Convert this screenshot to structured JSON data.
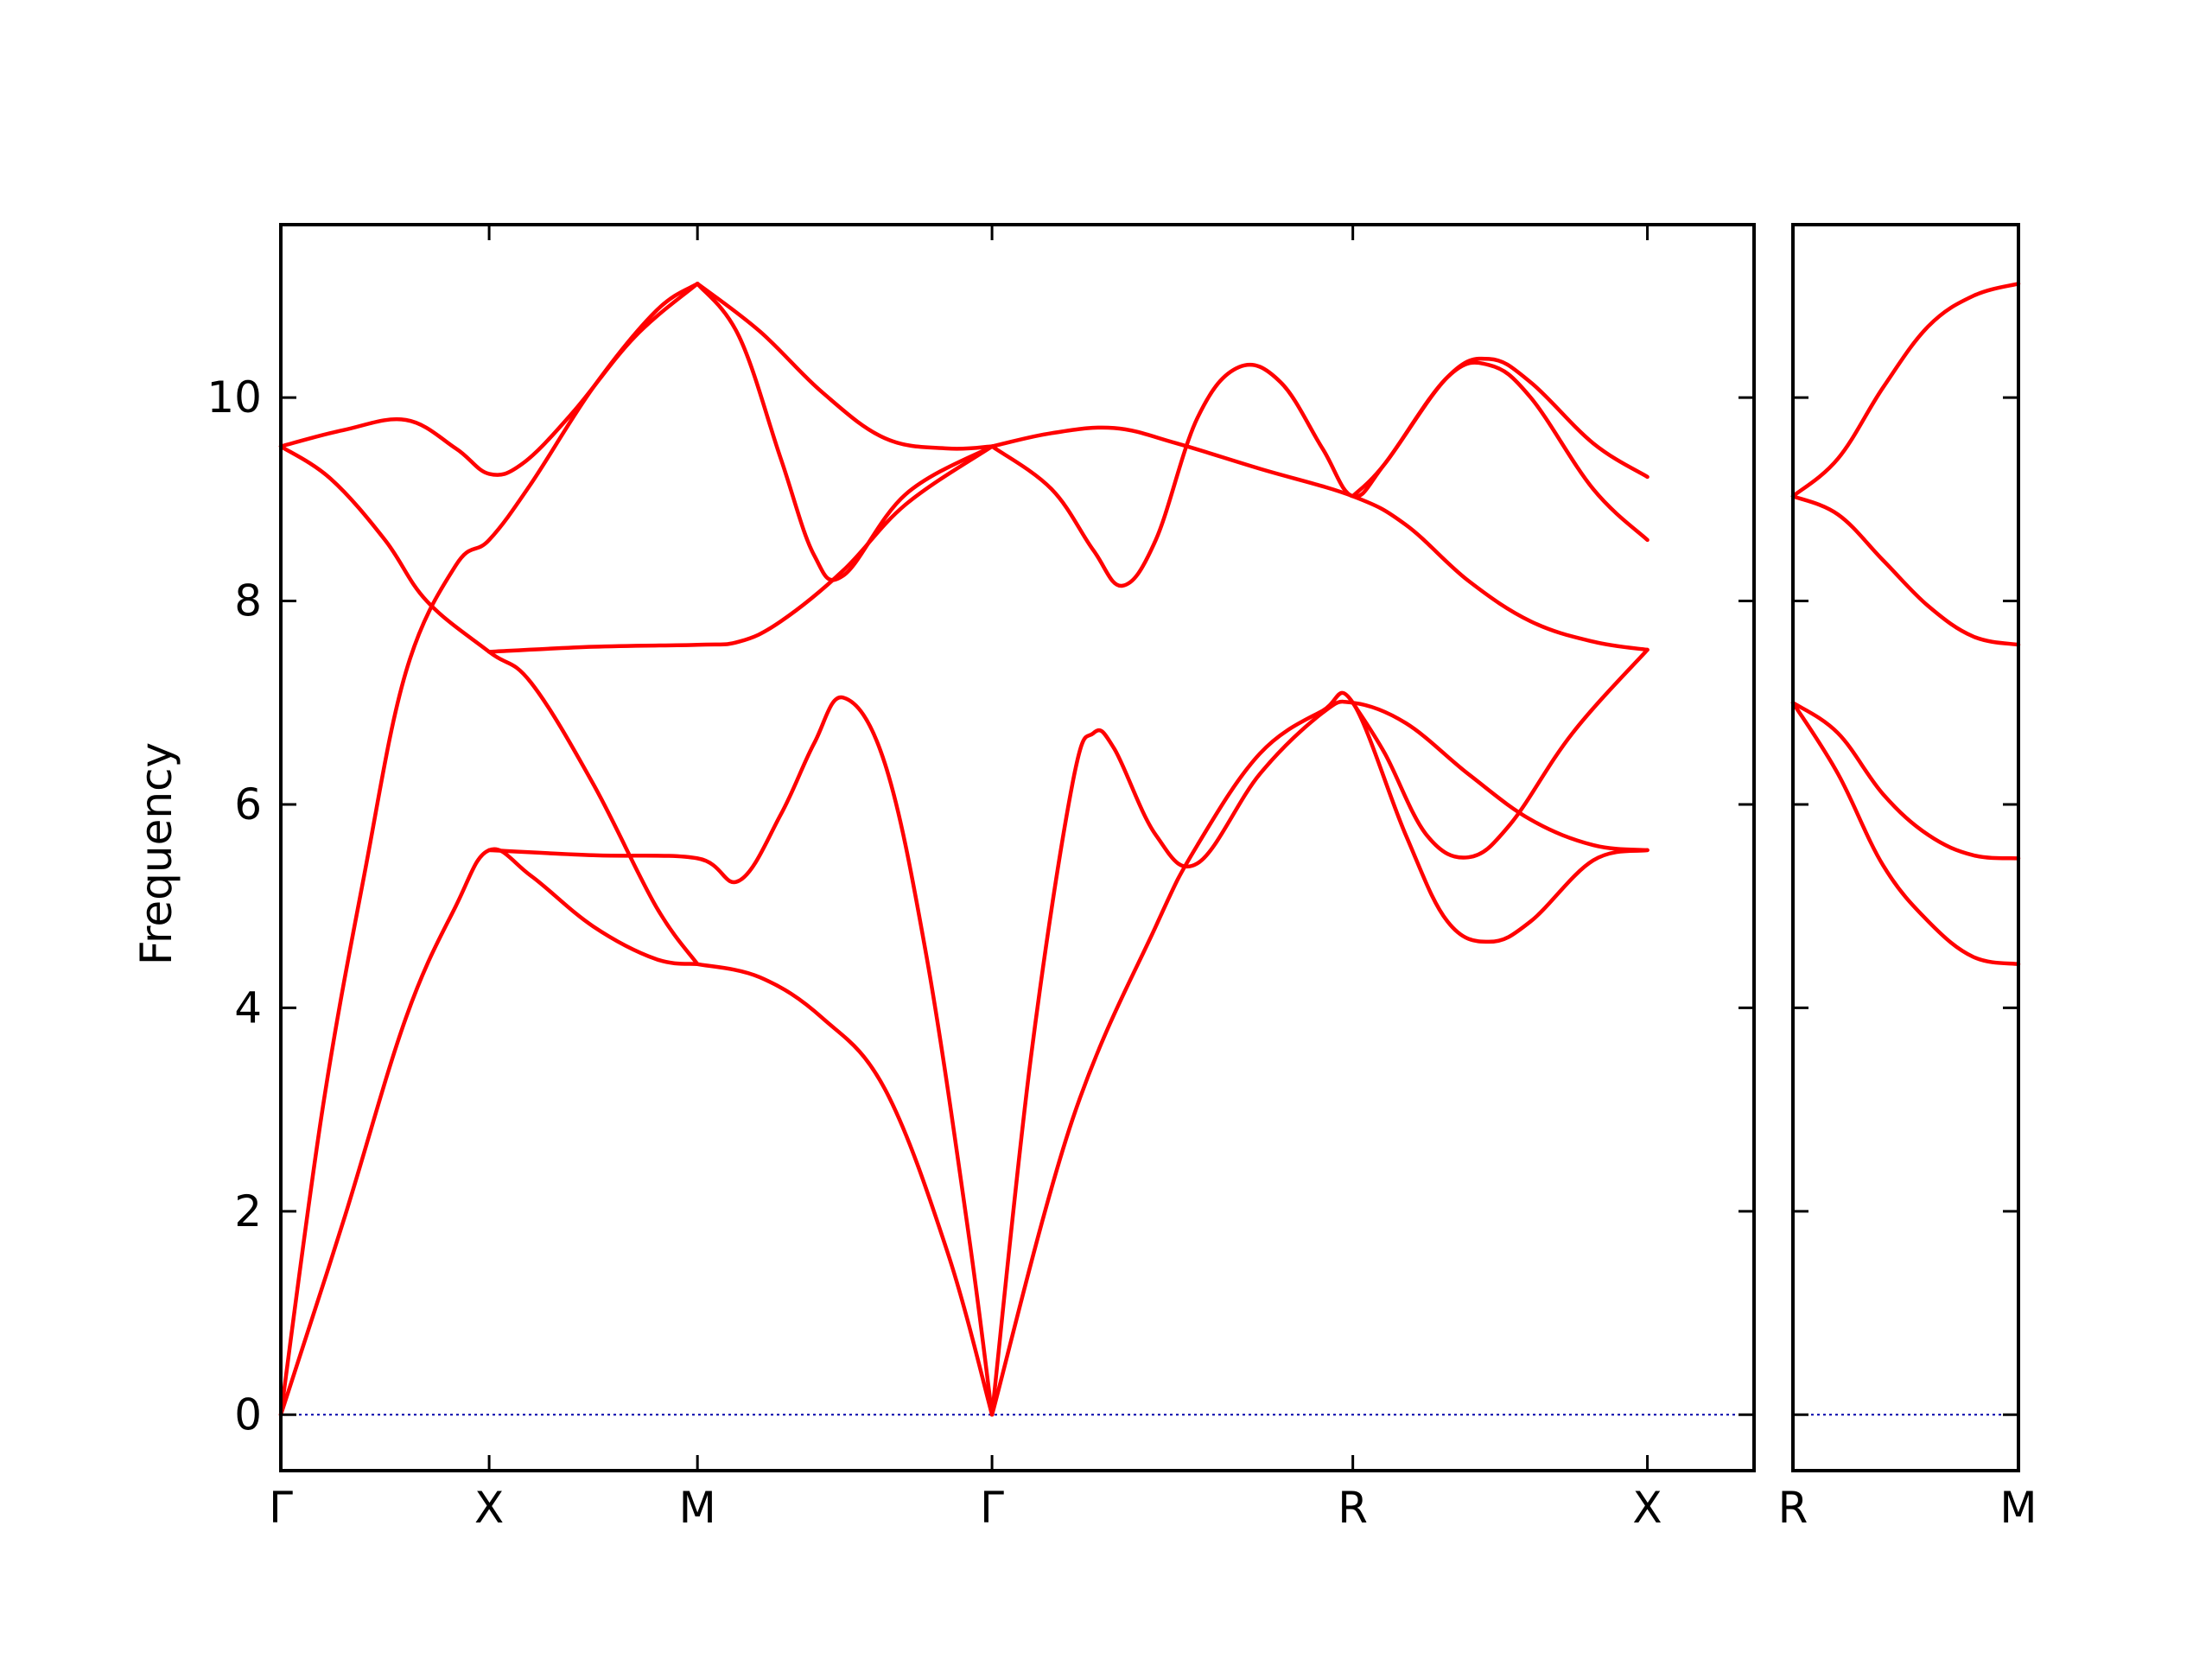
{
  "chart_data": {
    "type": "line",
    "title": "",
    "ylabel": "Frequency",
    "xlabel": "",
    "ylim": [
      -0.55,
      11.7
    ],
    "yticks": [
      0,
      2,
      4,
      6,
      8,
      10
    ],
    "grid": false,
    "legend": "none",
    "band_color": "#ff0000",
    "zero_line_color": "#0000aa",
    "panels": [
      {
        "xlim": [
          0,
          3.536
        ],
        "xticks": [
          {
            "x": 0,
            "label": "Γ"
          },
          {
            "x": 0.5,
            "label": "X"
          },
          {
            "x": 1.0,
            "label": "M"
          },
          {
            "x": 1.707,
            "label": "Γ"
          },
          {
            "x": 2.573,
            "label": "R"
          },
          {
            "x": 3.28,
            "label": "X"
          }
        ],
        "series": [
          {
            "values": [
              [
                0,
                9.52
              ],
              [
                0.15,
                9.68
              ],
              [
                0.3,
                9.78
              ],
              [
                0.42,
                9.5
              ],
              [
                0.5,
                9.25
              ],
              [
                0.58,
                9.35
              ],
              [
                0.7,
                9.85
              ],
              [
                0.85,
                10.6
              ],
              [
                1.0,
                11.12
              ]
            ]
          },
          {
            "values": [
              [
                0,
                0
              ],
              [
                0.1,
                3.0
              ],
              [
                0.2,
                5.3
              ],
              [
                0.3,
                7.3
              ],
              [
                0.42,
                8.35
              ],
              [
                0.5,
                8.6
              ],
              [
                0.6,
                9.15
              ],
              [
                0.75,
                10.1
              ],
              [
                0.9,
                10.85
              ],
              [
                1.0,
                11.12
              ]
            ]
          },
          {
            "values": [
              [
                0,
                9.52
              ],
              [
                0.12,
                9.2
              ],
              [
                0.25,
                8.6
              ],
              [
                0.35,
                8.0
              ],
              [
                0.5,
                7.5
              ],
              [
                0.6,
                7.2
              ],
              [
                0.75,
                6.2
              ],
              [
                0.9,
                5.0
              ],
              [
                1.0,
                4.43
              ]
            ]
          },
          {
            "values": [
              [
                0,
                0
              ],
              [
                0.15,
                1.9
              ],
              [
                0.3,
                3.9
              ],
              [
                0.42,
                5.0
              ],
              [
                0.5,
                5.55
              ],
              [
                0.6,
                5.3
              ],
              [
                0.75,
                4.8
              ],
              [
                0.9,
                4.48
              ],
              [
                1.0,
                4.43
              ]
            ]
          },
          {
            "values": [
              [
                0.5,
                7.5
              ],
              [
                0.75,
                7.55
              ],
              [
                1.0,
                7.57
              ],
              [
                1.1,
                7.6
              ],
              [
                1.2,
                7.8
              ],
              [
                1.35,
                8.3
              ],
              [
                1.5,
                8.95
              ],
              [
                1.707,
                9.52
              ]
            ]
          },
          {
            "values": [
              [
                0.5,
                5.55
              ],
              [
                0.75,
                5.5
              ],
              [
                1.0,
                5.47
              ],
              [
                1.1,
                5.25
              ],
              [
                1.2,
                5.9
              ],
              [
                1.28,
                6.6
              ],
              [
                1.35,
                7.05
              ],
              [
                1.45,
                6.4
              ],
              [
                1.55,
                4.5
              ],
              [
                1.65,
                1.8
              ],
              [
                1.707,
                0
              ]
            ]
          },
          {
            "values": [
              [
                1.0,
                11.12
              ],
              [
                1.15,
                10.65
              ],
              [
                1.3,
                10.05
              ],
              [
                1.45,
                9.6
              ],
              [
                1.6,
                9.5
              ],
              [
                1.707,
                9.52
              ]
            ]
          },
          {
            "values": [
              [
                1.0,
                11.12
              ],
              [
                1.1,
                10.6
              ],
              [
                1.2,
                9.4
              ],
              [
                1.28,
                8.45
              ],
              [
                1.35,
                8.25
              ],
              [
                1.5,
                9.05
              ],
              [
                1.707,
                9.52
              ]
            ]
          },
          {
            "values": [
              [
                1.0,
                4.43
              ],
              [
                1.15,
                4.3
              ],
              [
                1.3,
                3.9
              ],
              [
                1.45,
                3.2
              ],
              [
                1.6,
                1.6
              ],
              [
                1.707,
                0
              ]
            ]
          },
          {
            "values": [
              [
                1.707,
                9.52
              ],
              [
                1.85,
                9.65
              ],
              [
                2.0,
                9.7
              ],
              [
                2.15,
                9.55
              ],
              [
                2.35,
                9.3
              ],
              [
                2.573,
                9.03
              ],
              [
                2.7,
                8.75
              ],
              [
                2.85,
                8.2
              ],
              [
                3.0,
                7.8
              ],
              [
                3.15,
                7.6
              ],
              [
                3.28,
                7.52
              ]
            ]
          },
          {
            "values": [
              [
                1.707,
                9.52
              ],
              [
                1.85,
                9.1
              ],
              [
                1.95,
                8.5
              ],
              [
                2.02,
                8.15
              ],
              [
                2.1,
                8.6
              ],
              [
                2.2,
                9.8
              ],
              [
                2.3,
                10.3
              ],
              [
                2.4,
                10.15
              ],
              [
                2.5,
                9.5
              ],
              [
                2.573,
                9.03
              ],
              [
                2.65,
                9.35
              ],
              [
                2.8,
                10.2
              ],
              [
                2.9,
                10.38
              ],
              [
                3.0,
                10.15
              ],
              [
                3.15,
                9.55
              ],
              [
                3.28,
                9.22
              ]
            ]
          },
          {
            "values": [
              [
                2.573,
                9.03
              ],
              [
                2.65,
                9.35
              ],
              [
                2.8,
                10.2
              ],
              [
                2.9,
                10.32
              ],
              [
                3.0,
                10.0
              ],
              [
                3.15,
                9.1
              ],
              [
                3.28,
                8.6
              ]
            ]
          },
          {
            "values": [
              [
                1.707,
                0
              ],
              [
                1.8,
                3.5
              ],
              [
                1.9,
                6.2
              ],
              [
                1.95,
                6.7
              ],
              [
                2.0,
                6.55
              ],
              [
                2.1,
                5.7
              ],
              [
                2.2,
                5.42
              ],
              [
                2.35,
                6.3
              ],
              [
                2.5,
                6.9
              ],
              [
                2.573,
                7.0
              ],
              [
                2.7,
                6.8
              ],
              [
                2.85,
                6.3
              ],
              [
                3.0,
                5.85
              ],
              [
                3.15,
                5.6
              ],
              [
                3.28,
                5.55
              ]
            ]
          },
          {
            "values": [
              [
                1.707,
                0
              ],
              [
                1.9,
                2.9
              ],
              [
                2.1,
                4.8
              ],
              [
                2.2,
                5.6
              ],
              [
                2.35,
                6.5
              ],
              [
                2.5,
                6.92
              ],
              [
                2.573,
                7.0
              ],
              [
                2.7,
                5.7
              ],
              [
                2.8,
                4.85
              ],
              [
                2.9,
                4.65
              ],
              [
                3.0,
                4.85
              ],
              [
                3.15,
                5.45
              ],
              [
                3.28,
                5.55
              ]
            ]
          },
          {
            "values": [
              [
                2.573,
                7.0
              ],
              [
                2.65,
                6.5
              ],
              [
                2.75,
                5.7
              ],
              [
                2.85,
                5.48
              ],
              [
                2.95,
                5.8
              ],
              [
                3.1,
                6.7
              ],
              [
                3.28,
                7.52
              ]
            ]
          }
        ]
      },
      {
        "xlim": [
          0,
          0.5
        ],
        "xticks": [
          {
            "x": 0,
            "label": "R"
          },
          {
            "x": 0.5,
            "label": "M"
          }
        ],
        "series": [
          {
            "values": [
              [
                0,
                9.03
              ],
              [
                0.1,
                9.4
              ],
              [
                0.2,
                10.1
              ],
              [
                0.3,
                10.7
              ],
              [
                0.4,
                11.0
              ],
              [
                0.5,
                11.12
              ]
            ]
          },
          {
            "values": [
              [
                0,
                9.03
              ],
              [
                0.1,
                8.85
              ],
              [
                0.2,
                8.4
              ],
              [
                0.3,
                7.95
              ],
              [
                0.4,
                7.65
              ],
              [
                0.5,
                7.57
              ]
            ]
          },
          {
            "values": [
              [
                0,
                7.0
              ],
              [
                0.1,
                6.7
              ],
              [
                0.2,
                6.1
              ],
              [
                0.3,
                5.7
              ],
              [
                0.4,
                5.5
              ],
              [
                0.5,
                5.47
              ]
            ]
          },
          {
            "values": [
              [
                0,
                7.0
              ],
              [
                0.1,
                6.3
              ],
              [
                0.2,
                5.4
              ],
              [
                0.3,
                4.85
              ],
              [
                0.4,
                4.5
              ],
              [
                0.5,
                4.43
              ]
            ]
          }
        ]
      }
    ]
  }
}
